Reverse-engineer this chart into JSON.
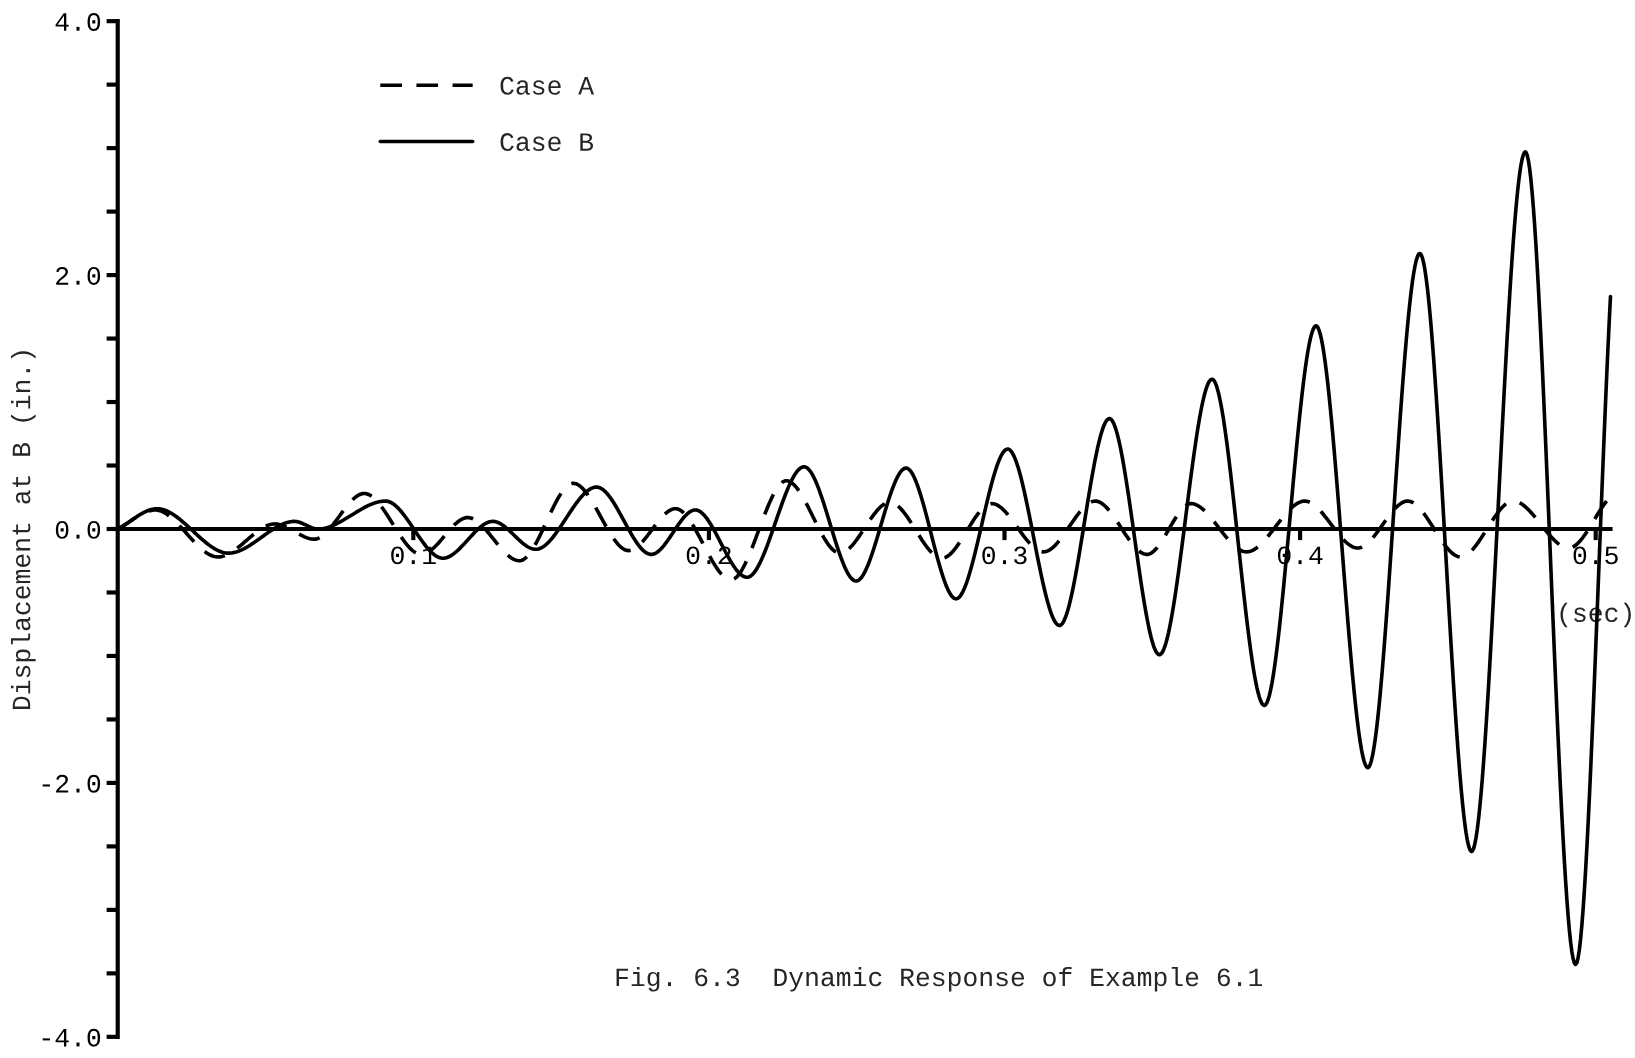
{
  "chart_data": {
    "type": "line",
    "title": "Fig. 6.3  Dynamic Response of Example 6.1",
    "xlabel": "(sec)",
    "ylabel": "Displacement at B (in.)",
    "xlim": [
      0,
      0.505
    ],
    "ylim": [
      -4.0,
      4.0
    ],
    "xticks": [
      0.1,
      0.2,
      0.3,
      0.4,
      0.5
    ],
    "yticks": [
      {
        "value": -4.0,
        "label": "-4.0"
      },
      {
        "value": -3.5,
        "label": null
      },
      {
        "value": -3.0,
        "label": null
      },
      {
        "value": -2.5,
        "label": null
      },
      {
        "value": -2.0,
        "label": "-2.0"
      },
      {
        "value": -1.5,
        "label": null
      },
      {
        "value": -1.0,
        "label": null
      },
      {
        "value": -0.5,
        "label": null
      },
      {
        "value": 0.0,
        "label": "0.0"
      },
      {
        "value": 0.5,
        "label": null
      },
      {
        "value": 1.0,
        "label": null
      },
      {
        "value": 1.5,
        "label": null
      },
      {
        "value": 2.0,
        "label": "2.0"
      },
      {
        "value": 2.5,
        "label": null
      },
      {
        "value": 3.0,
        "label": null
      },
      {
        "value": 3.5,
        "label": null
      },
      {
        "value": 4.0,
        "label": "4.0"
      }
    ],
    "grid": false,
    "legend": "top left",
    "marker": "none",
    "series": [
      {
        "name": "Case A",
        "color": "#000000",
        "line_style": "dashed",
        "x": [
          0,
          0.0127,
          0.0339,
          0.0532,
          0.0665,
          0.0834,
          0.1027,
          0.1184,
          0.1359,
          0.1541,
          0.1728,
          0.1887,
          0.2075,
          0.2262,
          0.2443,
          0.2612,
          0.2788,
          0.2957,
          0.3132,
          0.3307,
          0.3482,
          0.3631,
          0.3819,
          0.4016,
          0.4195,
          0.4364,
          0.4543,
          0.4721,
          0.4909,
          0.5037
        ],
        "values": [
          0,
          0.15,
          -0.22,
          0.04,
          -0.08,
          0.28,
          -0.2,
          0.09,
          -0.25,
          0.36,
          -0.17,
          0.16,
          -0.4,
          0.38,
          -0.19,
          0.21,
          -0.23,
          0.2,
          -0.18,
          0.22,
          -0.2,
          0.2,
          -0.18,
          0.22,
          -0.15,
          0.22,
          -0.22,
          0.22,
          -0.15,
          0.22
        ]
      },
      {
        "name": "Case B",
        "color": "#000000",
        "line_style": "solid",
        "x": [
          0,
          0.0133,
          0.0375,
          0.0598,
          0.0677,
          0.0906,
          0.11,
          0.1269,
          0.1414,
          0.162,
          0.1805,
          0.1954,
          0.2129,
          0.2322,
          0.2498,
          0.2667,
          0.2836,
          0.3011,
          0.3186,
          0.3355,
          0.3524,
          0.3702,
          0.3879,
          0.4054,
          0.4229,
          0.4405,
          0.458,
          0.4762,
          0.4932,
          0.505
        ],
        "values": [
          0,
          0.16,
          -0.19,
          0.06,
          0.0,
          0.22,
          -0.23,
          0.06,
          -0.16,
          0.33,
          -0.2,
          0.15,
          -0.38,
          0.49,
          -0.41,
          0.48,
          -0.55,
          0.63,
          -0.76,
          0.87,
          -0.99,
          1.18,
          -1.39,
          1.6,
          -1.88,
          2.17,
          -2.54,
          2.97,
          -3.43,
          1.83
        ]
      }
    ]
  }
}
